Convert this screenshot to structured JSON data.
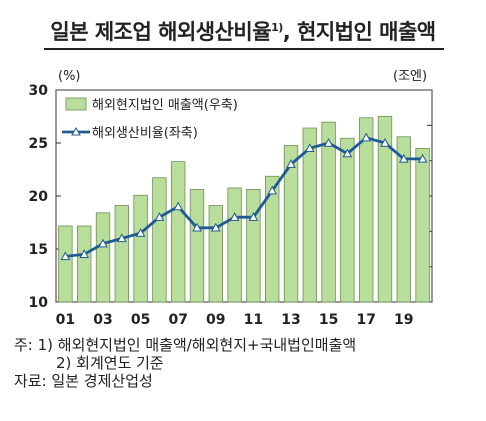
{
  "title": "일본 제조업 해외생산비율",
  "title_sup": "1)",
  "title_rest": ", 현지법인 매출액",
  "chart_data": {
    "type": "bar+line",
    "left_unit": "(%)",
    "right_unit": "(조엔)",
    "left_axis": {
      "min": 10,
      "max": 30,
      "ticks": [
        "30",
        "25",
        "20",
        "15",
        "10"
      ]
    },
    "right_axis": {
      "min": 0,
      "max": 145
    },
    "x_ticks": [
      "01",
      "03",
      "05",
      "07",
      "09",
      "11",
      "13",
      "15",
      "17",
      "19"
    ],
    "x": [
      "01",
      "02",
      "03",
      "04",
      "05",
      "06",
      "07",
      "08",
      "09",
      "10",
      "11",
      "12",
      "13",
      "14",
      "15",
      "16",
      "17",
      "18",
      "19",
      "20"
    ],
    "series": [
      {
        "name": "해외현지법인 매출액(우축)",
        "type": "bar",
        "axis": "right",
        "color": "#b9dd9b",
        "values": [
          52,
          52,
          61,
          66,
          73,
          85,
          96,
          77,
          66,
          78,
          77,
          86,
          107,
          119,
          123,
          112,
          126,
          127,
          113,
          105
        ]
      },
      {
        "name": "해외생산비율(좌축)",
        "type": "line",
        "axis": "left",
        "color": "#1f5a96",
        "values": [
          14.3,
          14.5,
          15.5,
          16.0,
          16.5,
          18.0,
          19.0,
          17.0,
          17.0,
          18.0,
          18.0,
          20.5,
          23.0,
          24.5,
          25.0,
          24.0,
          25.5,
          25.0,
          23.5,
          23.5
        ]
      }
    ]
  },
  "notes": {
    "line1": "주: 1) 해외현지법인 매출액/해외현지+국내법인매출액",
    "line2": "2) 회계연도 기준",
    "line3": "자료: 일본 경제산업성"
  }
}
